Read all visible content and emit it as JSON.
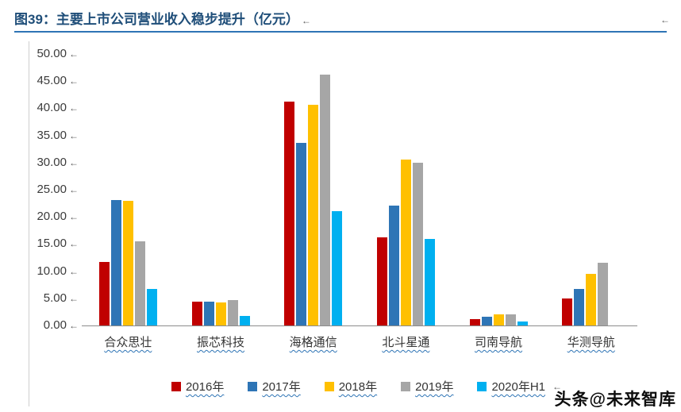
{
  "title": {
    "text": "图39：主要上市公司营业收入稳步提升（亿元）"
  },
  "marks": {
    "after_title": "←",
    "corner": "←",
    "tick": "←",
    "legend_tail": "←"
  },
  "watermark": {
    "text": "头条@未来智库"
  },
  "chart_data": {
    "type": "bar",
    "title": "主要上市公司营业收入稳步提升（亿元）",
    "categories": [
      "合众思壮",
      "振芯科技",
      "海格通信",
      "北斗星通",
      "司南导航",
      "华测导航"
    ],
    "series": [
      {
        "name": "2016年",
        "color": "#c00000",
        "values": [
          11.7,
          4.4,
          41.2,
          16.2,
          1.1,
          4.9
        ]
      },
      {
        "name": "2017年",
        "color": "#2e75b6",
        "values": [
          23.1,
          4.4,
          33.7,
          22.1,
          1.6,
          6.7
        ]
      },
      {
        "name": "2018年",
        "color": "#ffc000",
        "values": [
          23.0,
          4.3,
          40.7,
          30.5,
          2.0,
          9.5
        ]
      },
      {
        "name": "2019年",
        "color": "#a6a6a6",
        "values": [
          15.5,
          4.7,
          46.2,
          30.0,
          2.1,
          11.6
        ]
      },
      {
        "name": "2020年H1",
        "color": "#00b0f0",
        "values": [
          6.8,
          1.7,
          21.1,
          16.0,
          0.8,
          0
        ]
      }
    ],
    "ylim": [
      0,
      50
    ],
    "ytick_step": 5,
    "yticks": [
      "50.00",
      "45.00",
      "40.00",
      "35.00",
      "30.00",
      "25.00",
      "20.00",
      "15.00",
      "10.00",
      "5.00",
      "0.00"
    ],
    "xlabel": "",
    "ylabel": "",
    "grid": false,
    "legend_position": "bottom"
  }
}
